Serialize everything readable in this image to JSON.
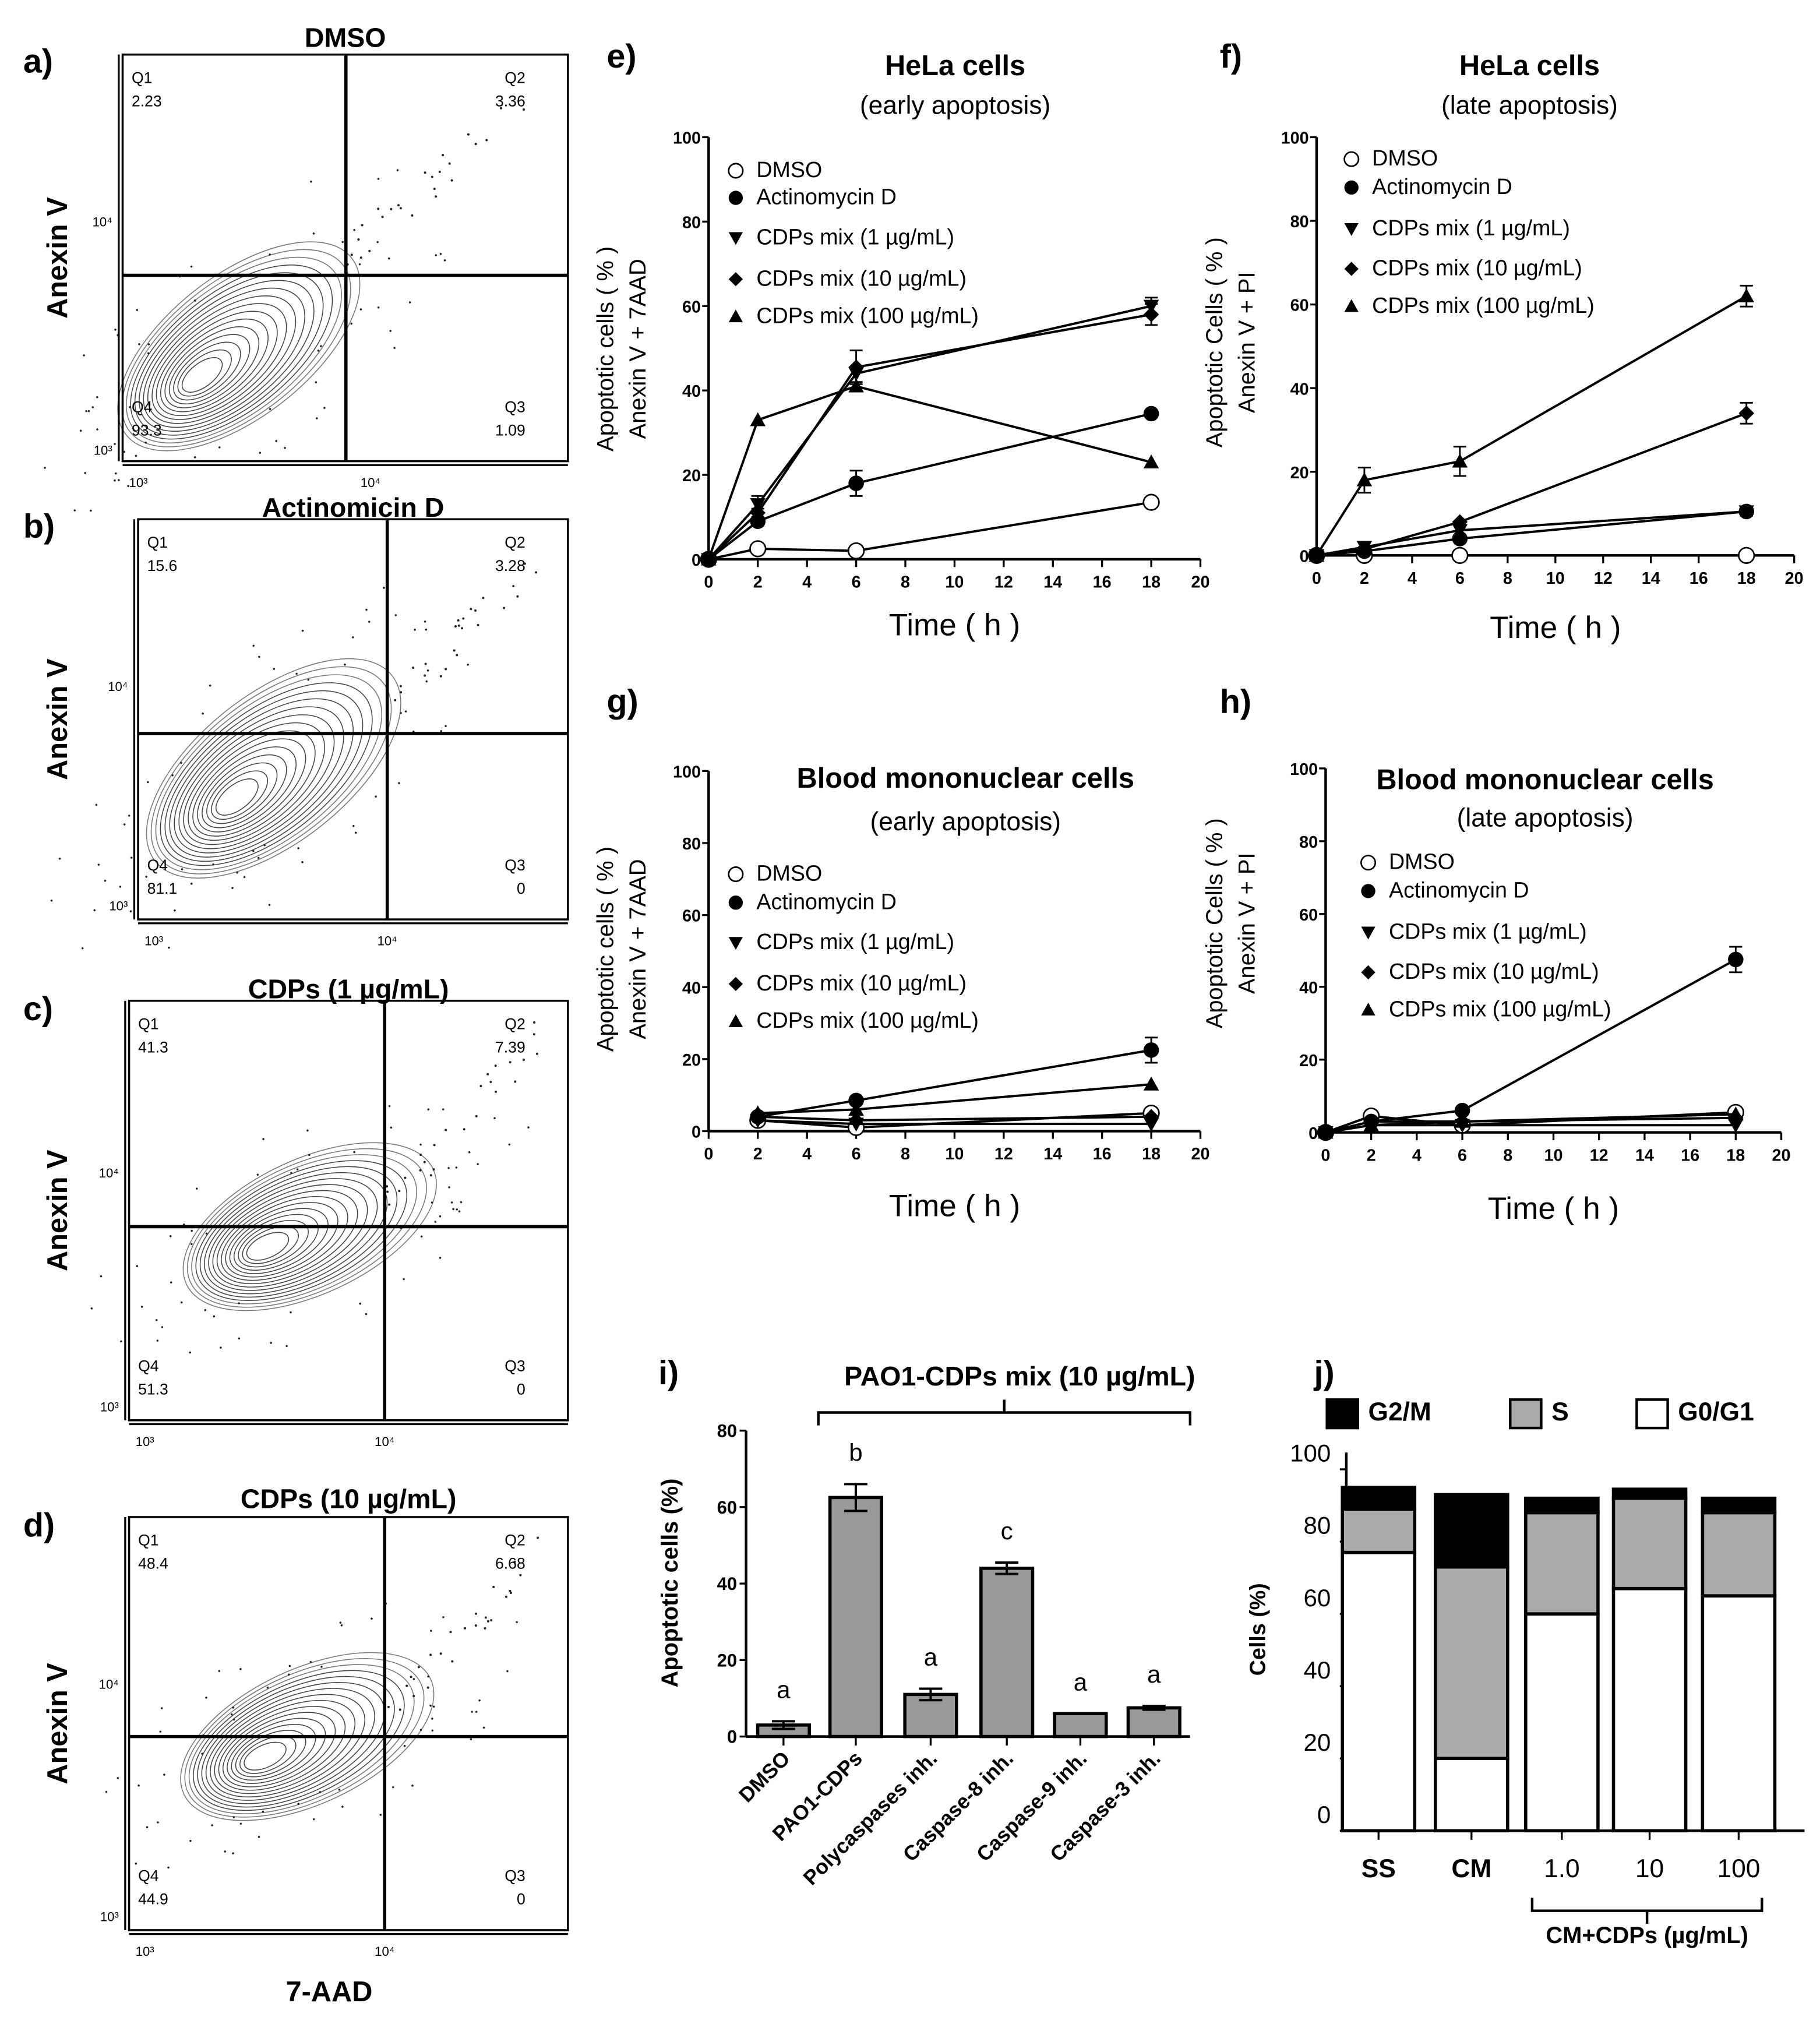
{
  "flow_panels": [
    {
      "label": "a)",
      "title": "DMSO",
      "ylabel": "Anexin V",
      "xlabel": "",
      "x_ticks": [
        "10³",
        "10⁴"
      ],
      "y_ticks": [
        "10⁴",
        "10³"
      ],
      "quadrants": [
        {
          "name": "Q1",
          "value": "2.23"
        },
        {
          "name": "Q2",
          "value": "3.36"
        },
        {
          "name": "Q3",
          "value": "1.09"
        },
        {
          "name": "Q4",
          "value": "93.3"
        }
      ]
    },
    {
      "label": "b)",
      "title": "Actinomicin D",
      "ylabel": "Anexin V",
      "xlabel": "",
      "x_ticks": [
        "10³",
        "10⁴"
      ],
      "y_ticks": [
        "10⁴",
        "10³"
      ],
      "quadrants": [
        {
          "name": "Q1",
          "value": "15.6"
        },
        {
          "name": "Q2",
          "value": "3.28"
        },
        {
          "name": "Q3",
          "value": "0"
        },
        {
          "name": "Q4",
          "value": "81.1"
        }
      ]
    },
    {
      "label": "c)",
      "title": "CDPs (1 µg/mL)",
      "ylabel": "Anexin V",
      "xlabel": "",
      "x_ticks": [
        "10³",
        "10⁴"
      ],
      "y_ticks": [
        "10⁴",
        "10³"
      ],
      "quadrants": [
        {
          "name": "Q1",
          "value": "41.3"
        },
        {
          "name": "Q2",
          "value": "7.39"
        },
        {
          "name": "Q3",
          "value": "0"
        },
        {
          "name": "Q4",
          "value": "51.3"
        }
      ]
    },
    {
      "label": "d)",
      "title": "CDPs (10 µg/mL)",
      "ylabel": "Anexin V",
      "xlabel": "7-AAD",
      "x_ticks": [
        "10³",
        "10⁴"
      ],
      "y_ticks": [
        "10⁴",
        "10³"
      ],
      "quadrants": [
        {
          "name": "Q1",
          "value": "48.4"
        },
        {
          "name": "Q2",
          "value": "6.68"
        },
        {
          "name": "Q3",
          "value": "0"
        },
        {
          "name": "Q4",
          "value": "44.9"
        }
      ]
    }
  ],
  "chart_data": [
    {
      "panel": "e)",
      "type": "line",
      "title": "HeLa cells",
      "subtitle": "(early apoptosis)",
      "ylabel": [
        "Apoptotic  cells  ( % )",
        "Anexin V + 7AAD"
      ],
      "xlabel": "Time ( h )",
      "xlim": [
        0,
        20
      ],
      "ylim": [
        0,
        100
      ],
      "x_ticks": [
        0,
        2,
        4,
        6,
        8,
        10,
        12,
        14,
        16,
        18,
        20
      ],
      "y_ticks": [
        0,
        20,
        40,
        60,
        80,
        100
      ],
      "legend": "top-left",
      "x": [
        0,
        2,
        6,
        18
      ],
      "series": [
        {
          "name": "DMSO",
          "marker": "circle-open",
          "values": [
            0,
            2.5,
            2,
            13.5
          ],
          "errors": [
            0,
            0,
            0,
            0
          ]
        },
        {
          "name": "Actinomycin D",
          "marker": "circle-filled",
          "values": [
            0,
            9,
            18,
            34.5
          ],
          "errors": [
            0,
            1,
            3,
            0
          ]
        },
        {
          "name": "CDPs mix (1 µg/mL)",
          "marker": "triangle-down",
          "values": [
            0,
            13,
            44,
            60
          ],
          "errors": [
            0,
            2,
            0,
            2
          ]
        },
        {
          "name": "CDPs mix (10 µg/mL)",
          "marker": "diamond",
          "values": [
            0,
            11,
            45.5,
            58
          ],
          "errors": [
            0,
            1,
            4,
            2.5
          ]
        },
        {
          "name": "CDPs mix (100 µg/mL)",
          "marker": "triangle-up",
          "values": [
            0,
            33,
            41,
            23
          ],
          "errors": [
            0,
            0,
            1,
            0
          ]
        }
      ]
    },
    {
      "panel": "f)",
      "type": "line",
      "title": "HeLa cells",
      "subtitle": "(late apoptosis)",
      "ylabel": [
        "Apoptotic  Cells  ( % )",
        "Anexin V + PI"
      ],
      "xlabel": "Time ( h )",
      "xlim": [
        0,
        20
      ],
      "ylim": [
        0,
        100
      ],
      "x_ticks": [
        0,
        2,
        4,
        6,
        8,
        10,
        12,
        14,
        16,
        18,
        20
      ],
      "y_ticks": [
        0,
        20,
        40,
        60,
        80,
        100
      ],
      "legend": "top-left",
      "x": [
        0,
        2,
        6,
        18
      ],
      "series": [
        {
          "name": "DMSO",
          "marker": "circle-open",
          "values": [
            0,
            0,
            0,
            0
          ],
          "errors": [
            0,
            0,
            0,
            0
          ]
        },
        {
          "name": "Actinomycin D",
          "marker": "circle-filled",
          "values": [
            0,
            1,
            4,
            10.5
          ],
          "errors": [
            0,
            0,
            0,
            1
          ]
        },
        {
          "name": "CDPs mix (1 µg/mL)",
          "marker": "triangle-down",
          "values": [
            0,
            2,
            6,
            10.5
          ],
          "errors": [
            0,
            1,
            0,
            1
          ]
        },
        {
          "name": "CDPs mix (10 µg/mL)",
          "marker": "diamond",
          "values": [
            0,
            1.5,
            8,
            34
          ],
          "errors": [
            0,
            0,
            0,
            2.5
          ]
        },
        {
          "name": "CDPs mix (100 µg/mL)",
          "marker": "triangle-up",
          "values": [
            0,
            18,
            22.5,
            62
          ],
          "errors": [
            0,
            3,
            3.5,
            2.5
          ]
        }
      ]
    },
    {
      "panel": "g)",
      "type": "line",
      "title": "Blood mononuclear cells",
      "subtitle": "(early apoptosis)",
      "ylabel": [
        "Apoptotic  cells  ( % )",
        "Anexin V + 7AAD"
      ],
      "xlabel": "Time ( h )",
      "xlim": [
        0,
        20
      ],
      "ylim": [
        0,
        100
      ],
      "x_ticks": [
        0,
        2,
        4,
        6,
        8,
        10,
        12,
        14,
        16,
        18,
        20
      ],
      "y_ticks": [
        0,
        20,
        40,
        60,
        80,
        100
      ],
      "legend": "left",
      "x": [
        2,
        6,
        18
      ],
      "series": [
        {
          "name": "DMSO",
          "marker": "circle-open",
          "values": [
            3,
            1,
            5
          ],
          "errors": [
            0,
            0,
            0
          ]
        },
        {
          "name": "Actinomycin D",
          "marker": "circle-filled",
          "values": [
            4,
            8.5,
            22.5
          ],
          "errors": [
            0,
            0,
            3.5
          ]
        },
        {
          "name": "CDPs mix (1 µg/mL)",
          "marker": "triangle-down",
          "values": [
            3,
            2,
            2
          ],
          "errors": [
            0,
            0,
            0
          ]
        },
        {
          "name": "CDPs mix (10 µg/mL)",
          "marker": "diamond",
          "values": [
            4,
            3,
            4
          ],
          "errors": [
            0,
            0,
            0
          ]
        },
        {
          "name": "CDPs mix (100 µg/mL)",
          "marker": "triangle-up",
          "values": [
            5,
            6,
            13
          ],
          "errors": [
            0,
            0,
            0
          ]
        }
      ]
    },
    {
      "panel": "h)",
      "type": "line",
      "title": "Blood mononuclear cells",
      "subtitle": "(late apoptosis)",
      "ylabel": [
        "Apoptotic  Cells  ( % )",
        "Anexin V + PI"
      ],
      "xlabel": "Time ( h )",
      "xlim": [
        0,
        20
      ],
      "ylim": [
        0,
        100
      ],
      "x_ticks": [
        0,
        2,
        4,
        6,
        8,
        10,
        12,
        14,
        16,
        18,
        20
      ],
      "y_ticks": [
        0,
        20,
        40,
        60,
        80,
        100
      ],
      "legend": "left",
      "x": [
        0,
        2,
        6,
        18
      ],
      "series": [
        {
          "name": "DMSO",
          "marker": "circle-open",
          "values": [
            0,
            4.5,
            2,
            5.5
          ],
          "errors": [
            0,
            0,
            0,
            0
          ]
        },
        {
          "name": "Actinomycin D",
          "marker": "circle-filled",
          "values": [
            0,
            3,
            6,
            47.5
          ],
          "errors": [
            0,
            0,
            0,
            3.5
          ]
        },
        {
          "name": "CDPs mix (1 µg/mL)",
          "marker": "triangle-down",
          "values": [
            0,
            2,
            2,
            2
          ],
          "errors": [
            0,
            0,
            0,
            0
          ]
        },
        {
          "name": "CDPs mix (10 µg/mL)",
          "marker": "diamond",
          "values": [
            0,
            3,
            3,
            4
          ],
          "errors": [
            0,
            0,
            0,
            0
          ]
        },
        {
          "name": "CDPs mix (100 µg/mL)",
          "marker": "triangle-up",
          "values": [
            0,
            2,
            3,
            5
          ],
          "errors": [
            0,
            0,
            0,
            0
          ]
        }
      ]
    },
    {
      "panel": "i)",
      "type": "bar",
      "title": "PAO1-CDPs mix  (10 µg/mL)",
      "ylabel": "Apoptotic cells  (%)",
      "xlabel": "",
      "ylim": [
        0,
        80
      ],
      "y_ticks": [
        0,
        20,
        40,
        60,
        80
      ],
      "categories": [
        "DMSO",
        "PAO1-CDPs",
        "Polycaspases inh.",
        "Caspase-8 inh.",
        "Caspase-9 inh.",
        "Caspase-3 inh."
      ],
      "values": [
        3,
        62.5,
        11,
        44,
        6,
        7.5
      ],
      "errors": [
        1,
        3.5,
        1.5,
        1.5,
        0,
        0.5
      ],
      "significance_letters": [
        "a",
        "b",
        "a",
        "c",
        "a",
        "a"
      ],
      "bar_color": "#999999"
    },
    {
      "panel": "j)",
      "type": "bar",
      "stacked": true,
      "ylabel": "Cells (%)",
      "xlabel": "",
      "ylim": [
        0,
        100
      ],
      "y_ticks": [
        0,
        20,
        40,
        60,
        80,
        100
      ],
      "legend": "top",
      "categories": [
        "SS",
        "CM",
        "1.0",
        "10",
        "100"
      ],
      "group_label": "CM+CDPs (µg/mL)",
      "series": [
        {
          "name": "G0/G1",
          "color": "#ffffff",
          "values": [
            77,
            20,
            60,
            67,
            65
          ]
        },
        {
          "name": "S",
          "color": "#aaaaaa",
          "values": [
            12,
            53,
            28,
            25,
            23
          ]
        },
        {
          "name": "G2/M",
          "color": "#000000",
          "values": [
            6,
            20,
            4,
            2.5,
            4
          ]
        }
      ]
    }
  ]
}
